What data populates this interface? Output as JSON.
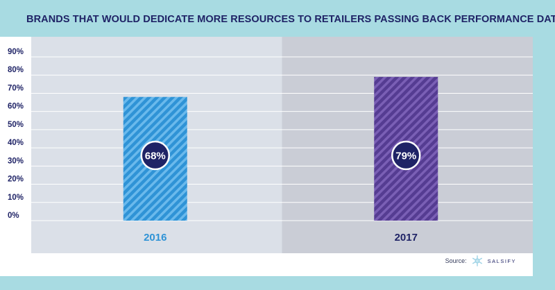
{
  "title": "BRANDS THAT WOULD DEDICATE MORE RESOURCES TO RETAILERS PASSING BACK PERFORMANCE DATA",
  "footer": {
    "source_label": "Source:",
    "brand": "SALSIFY",
    "brand_icon": "snowflake-logo-icon"
  },
  "colors": {
    "panel_left": "#dbe0e8",
    "panel_right": "#cacdd6",
    "bar_2016": "#2f93d6",
    "bar_2016_stripe": "#6ab9ec",
    "bar_2017": "#553c92",
    "bar_2017_stripe": "#7a5fb5",
    "badge": "#1f2366",
    "label_2016": "#2f93d6",
    "label_2017": "#1f2366",
    "axis_text": "#1f2366"
  },
  "chart_data": {
    "type": "bar",
    "title": "BRANDS THAT WOULD DEDICATE MORE RESOURCES TO RETAILERS PASSING BACK PERFORMANCE DATA",
    "categories": [
      "2016",
      "2017"
    ],
    "values": [
      68,
      79
    ],
    "data_labels": [
      "68%",
      "79%"
    ],
    "yticks": [
      "0%",
      "10%",
      "20%",
      "30%",
      "40%",
      "50%",
      "60%",
      "70%",
      "80%",
      "90%"
    ],
    "ylim": [
      0,
      90
    ],
    "xlabel": "",
    "ylabel": "",
    "grid": true
  }
}
